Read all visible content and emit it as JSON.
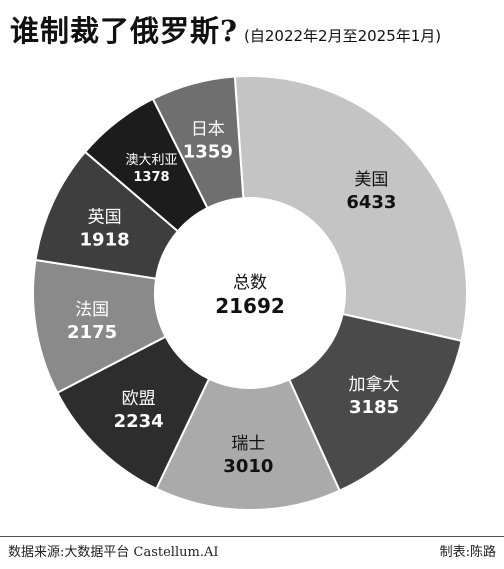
{
  "header": {
    "title": "谁制裁了俄罗斯?",
    "subtitle": "(自2022年2月至2025年1月)"
  },
  "footer": {
    "source": "数据来源:大数据平台 Castellum.AI",
    "credit": "制表:陈路"
  },
  "chart_data": {
    "type": "pie",
    "donut": true,
    "center_label": "总数",
    "center_value": "21692",
    "total": 21692,
    "slices": [
      {
        "label": "美国",
        "value": 6433,
        "color": "#c4c4c4",
        "text_color": "#111111"
      },
      {
        "label": "加拿大",
        "value": 3185,
        "color": "#4a4a4a",
        "text_color": "#ffffff"
      },
      {
        "label": "瑞士",
        "value": 3010,
        "color": "#aaaaaa",
        "text_color": "#111111"
      },
      {
        "label": "欧盟",
        "value": 2234,
        "color": "#2d2d2d",
        "text_color": "#ffffff"
      },
      {
        "label": "法国",
        "value": 2175,
        "color": "#8a8a8a",
        "text_color": "#ffffff"
      },
      {
        "label": "英国",
        "value": 1918,
        "color": "#3e3e3e",
        "text_color": "#ffffff"
      },
      {
        "label": "澳大利亚",
        "value": 1378,
        "color": "#1c1c1c",
        "text_color": "#ffffff"
      },
      {
        "label": "日本",
        "value": 1359,
        "color": "#6f6f6f",
        "text_color": "#ffffff"
      }
    ]
  }
}
